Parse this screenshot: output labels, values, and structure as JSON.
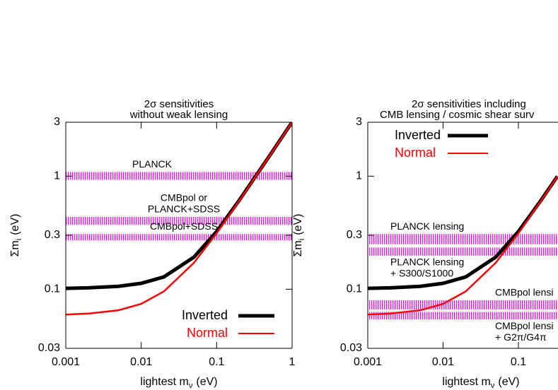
{
  "chart_data": [
    {
      "type": "line",
      "title": [
        "2σ  sensitivities",
        "without weak lensing"
      ],
      "x_label": {
        "main": "lightest m",
        "sub": "ν",
        "unit": "(eV)"
      },
      "y_label": {
        "main": "Σm",
        "sub": "i",
        "unit": "(eV)"
      },
      "log_x": true,
      "log_y": true,
      "xlim": [
        0.001,
        1
      ],
      "ylim": [
        0.03,
        3
      ],
      "xticks": [
        0.001,
        0.01,
        0.1,
        1
      ],
      "yticks": [
        0.03,
        0.1,
        0.3,
        1,
        3
      ],
      "legend": "lower right",
      "x": [
        0.001,
        0.002,
        0.005,
        0.01,
        0.02,
        0.05,
        0.1,
        0.2,
        0.5,
        1
      ],
      "series": [
        {
          "name": "Inverted",
          "color": "#000000",
          "values": [
            0.1018,
            0.1028,
            0.1062,
            0.1127,
            0.1285,
            0.192,
            0.324,
            0.613,
            1.505,
            3.003
          ]
        },
        {
          "name": "Normal",
          "color": "#ff0000",
          "values": [
            0.0597,
            0.0609,
            0.0652,
            0.0742,
            0.0957,
            0.1714,
            0.312,
            0.606,
            1.503,
            3.001
          ]
        }
      ],
      "band_color": "#e020e0",
      "bands": [
        {
          "label": [
            "PLANCK"
          ],
          "range": [
            0.93,
            1.09
          ]
        },
        {
          "label": [
            "CMBpol or",
            "PLANCK+SDSS"
          ],
          "range": [
            0.372,
            0.436
          ]
        },
        {
          "label": [
            "CMBpol+SDSS"
          ],
          "range": [
            0.27,
            0.308
          ]
        }
      ]
    },
    {
      "type": "line",
      "title": [
        "2σ  sensitivities including",
        "CMB lensing / cosmic shear surv"
      ],
      "x_label": {
        "main": "lightest m",
        "sub": "ν",
        "unit": "(eV)"
      },
      "y_label": {
        "main": "Σm",
        "sub": "i",
        "unit": "(eV)"
      },
      "log_x": true,
      "log_y": true,
      "xlim": [
        0.001,
        0.33
      ],
      "ylim": [
        0.03,
        3
      ],
      "xticks": [
        0.001,
        0.01,
        0.1
      ],
      "yticks": [
        0.03,
        0.1,
        0.3,
        1,
        3
      ],
      "legend": "upper left",
      "x": [
        0.001,
        0.002,
        0.005,
        0.01,
        0.02,
        0.05,
        0.1,
        0.2,
        0.33
      ],
      "series": [
        {
          "name": "Inverted",
          "color": "#000000",
          "values": [
            0.1018,
            0.1028,
            0.1062,
            0.1127,
            0.1285,
            0.192,
            0.324,
            0.613,
            0.998
          ]
        },
        {
          "name": "Normal",
          "color": "#ff0000",
          "values": [
            0.0597,
            0.0609,
            0.0652,
            0.0742,
            0.0957,
            0.1714,
            0.312,
            0.606,
            0.994
          ]
        }
      ],
      "band_color": "#e020e0",
      "bands": [
        {
          "label": [
            "PLANCK lensing"
          ],
          "range": [
            0.25,
            0.308
          ]
        },
        {
          "label": [
            "PLANCK lensing",
            "+ S300/S1000"
          ],
          "range": [
            0.198,
            0.234
          ]
        },
        {
          "label": [
            "CMBpol lensi"
          ],
          "range": [
            0.0662,
            0.0798
          ]
        },
        {
          "label": [
            "CMBpol lensi",
            "+ G2π/G4π"
          ],
          "range": [
            0.054,
            0.063
          ]
        }
      ]
    }
  ]
}
